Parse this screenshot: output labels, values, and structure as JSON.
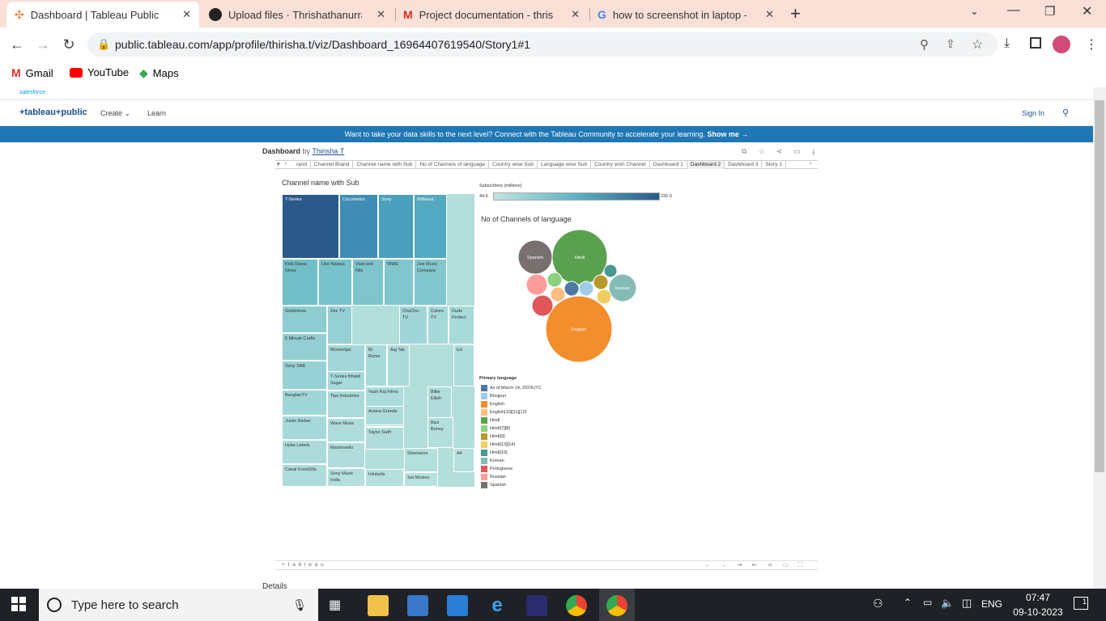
{
  "browser": {
    "tabs": [
      {
        "title": "Dashboard | Tableau Public",
        "icon": "tableau-icon",
        "active": true
      },
      {
        "title": "Upload files · Thrishathanurrajan",
        "icon": "github-icon",
        "active": false
      },
      {
        "title": "Project documentation - thrisha",
        "icon": "gmail-icon",
        "active": false
      },
      {
        "title": "how to screenshot in laptop - Go",
        "icon": "google-icon",
        "active": false
      }
    ],
    "url": "public.tableau.com/app/profile/thirisha.t/viz/Dashboard_16964407619540/Story1#1",
    "bookmarks": [
      "Gmail",
      "YouTube",
      "Maps"
    ]
  },
  "page": {
    "salesforce": "salesforce",
    "logo": "+tableau+public",
    "nav": {
      "create": "Create",
      "learn": "Learn",
      "signin": "Sign In"
    },
    "banner": "Want to take your data skills to the next level? Connect with the Tableau Community to accelerate your learning.",
    "banner_link": "Show me →",
    "viz_title": "Dashboard",
    "by": "by",
    "author": "Thirisha T",
    "viz_tabs": [
      "rand",
      "Channel Brand",
      "Channel name with Sub",
      "No of Channels of language",
      "Country wise Sub",
      "Language wise Sub",
      "Country wish Channel",
      "Dashboard 1",
      "Dashboard 2",
      "Dashboard 3",
      "Story 1"
    ],
    "active_viz_tab": "Dashboard 2",
    "footer_logo": "+ t a b l e a u",
    "details": "Details"
  },
  "chart_data": [
    {
      "type": "treemap",
      "title": "Channel name with Sub",
      "labels": [
        "T-Series",
        "Cocomelon",
        "Sony",
        "MrBeast",
        "Kids Diana Show",
        "Like Nastya",
        "Vlad and Niki",
        "WWE",
        "Zee Music Company",
        "Goldmines",
        "Zee TV",
        "ChuChu TV",
        "Colors TV",
        "Dude Perfect",
        "5 Minute Crafts",
        "Sony SAB",
        "Movieclips",
        "BI Rome",
        "Aaj Tak",
        "Ed",
        "T-Series Bhakti Sagar",
        "Yash Raj Films",
        "Billie Eilish",
        "BangtanTV",
        "Tips Industries",
        "Ariana Grande",
        "Justin Bieber",
        "Wave Music",
        "Taylor Swift",
        "Bad Bunny",
        "Hybe Labels",
        "Marshmello",
        "Shemaroo",
        "A4",
        "Canal KondZilla",
        "Sony Music India",
        "Infobells",
        "Set Movies"
      ]
    },
    {
      "type": "bubble",
      "title": "No of Channels of language",
      "color_legend_title": "Subscribers (millions)",
      "color_range": [
        44.6,
        235.0
      ],
      "color_min_label": "44.6",
      "color_max_label": "235.0",
      "bubble_labels": [
        "Hindi",
        "Spanish",
        "Korean",
        "English"
      ],
      "legend_title": "Primary language",
      "legend": [
        {
          "name": "As of March 14, 2023UTC",
          "color": "#4e79a7"
        },
        {
          "name": "Bhojpuri",
          "color": "#a0cbe8"
        },
        {
          "name": "English",
          "color": "#f28e2b"
        },
        {
          "name": "English[10][11][12]",
          "color": "#ffbe7d"
        },
        {
          "name": "Hindi",
          "color": "#59a14f"
        },
        {
          "name": "Hindi[7][8]",
          "color": "#8cd17d"
        },
        {
          "name": "Hindi[9]",
          "color": "#b6992d"
        },
        {
          "name": "Hindi[13][14]",
          "color": "#f1ce63"
        },
        {
          "name": "Hindi[16]",
          "color": "#499894"
        },
        {
          "name": "Korean",
          "color": "#86bcb6"
        },
        {
          "name": "Portuguese",
          "color": "#e15759"
        },
        {
          "name": "Russian",
          "color": "#ff9d9a"
        },
        {
          "name": "Spanish",
          "color": "#79706e"
        }
      ]
    }
  ],
  "taskbar": {
    "search_placeholder": "Type here to search",
    "lang": "ENG",
    "time": "07:47",
    "date": "09-10-2023",
    "notif": "1"
  }
}
